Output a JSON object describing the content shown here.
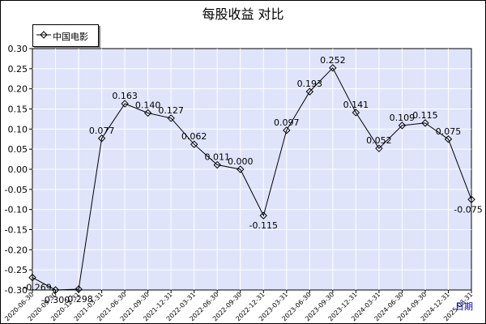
{
  "chart_data": {
    "type": "line",
    "title": "每股收益  对比",
    "xlabel": "日期",
    "ylabel": "",
    "ylim": [
      -0.3,
      0.3
    ],
    "yticks": [
      -0.3,
      -0.25,
      -0.2,
      -0.15,
      -0.1,
      -0.05,
      0.0,
      0.05,
      0.1,
      0.15,
      0.2,
      0.25,
      0.3
    ],
    "grid": true,
    "legend_position": "top-left",
    "categories": [
      "2020-06-30",
      "2020-09-30",
      "2020-12-31",
      "2021-03-31",
      "2021-06-30",
      "2021-09-30",
      "2021-12-31",
      "2022-03-31",
      "2022-06-30",
      "2022-09-30",
      "2022-12-31",
      "2023-03-31",
      "2023-06-30",
      "2023-09-30",
      "2023-12-31",
      "2024-03-31",
      "2024-06-30",
      "2024-09-30",
      "2024-12-31",
      "2025-03-31"
    ],
    "series": [
      {
        "name": "中国电影",
        "color": "#000000",
        "values": [
          -0.269,
          -0.3,
          -0.298,
          0.077,
          0.163,
          0.14,
          0.127,
          0.062,
          0.011,
          0.0,
          -0.115,
          0.097,
          0.193,
          0.252,
          0.141,
          0.052,
          0.109,
          0.115,
          0.075,
          -0.075
        ],
        "labels": [
          "-0.269",
          "-0.300",
          "-0.298",
          "0.077",
          "0.163",
          "0.140",
          "0.127",
          "0.062",
          "0.011",
          "0.000",
          "-0.115",
          "0.097",
          "0.193",
          "0.252",
          "0.141",
          "0.052",
          "0.109",
          "0.115",
          "0.075",
          "-0.075"
        ]
      }
    ]
  },
  "colors": {
    "plot_background": "#dfe4fb",
    "grid": "#ffffff",
    "line": "#000000",
    "axis_unit": "#0000cc"
  }
}
